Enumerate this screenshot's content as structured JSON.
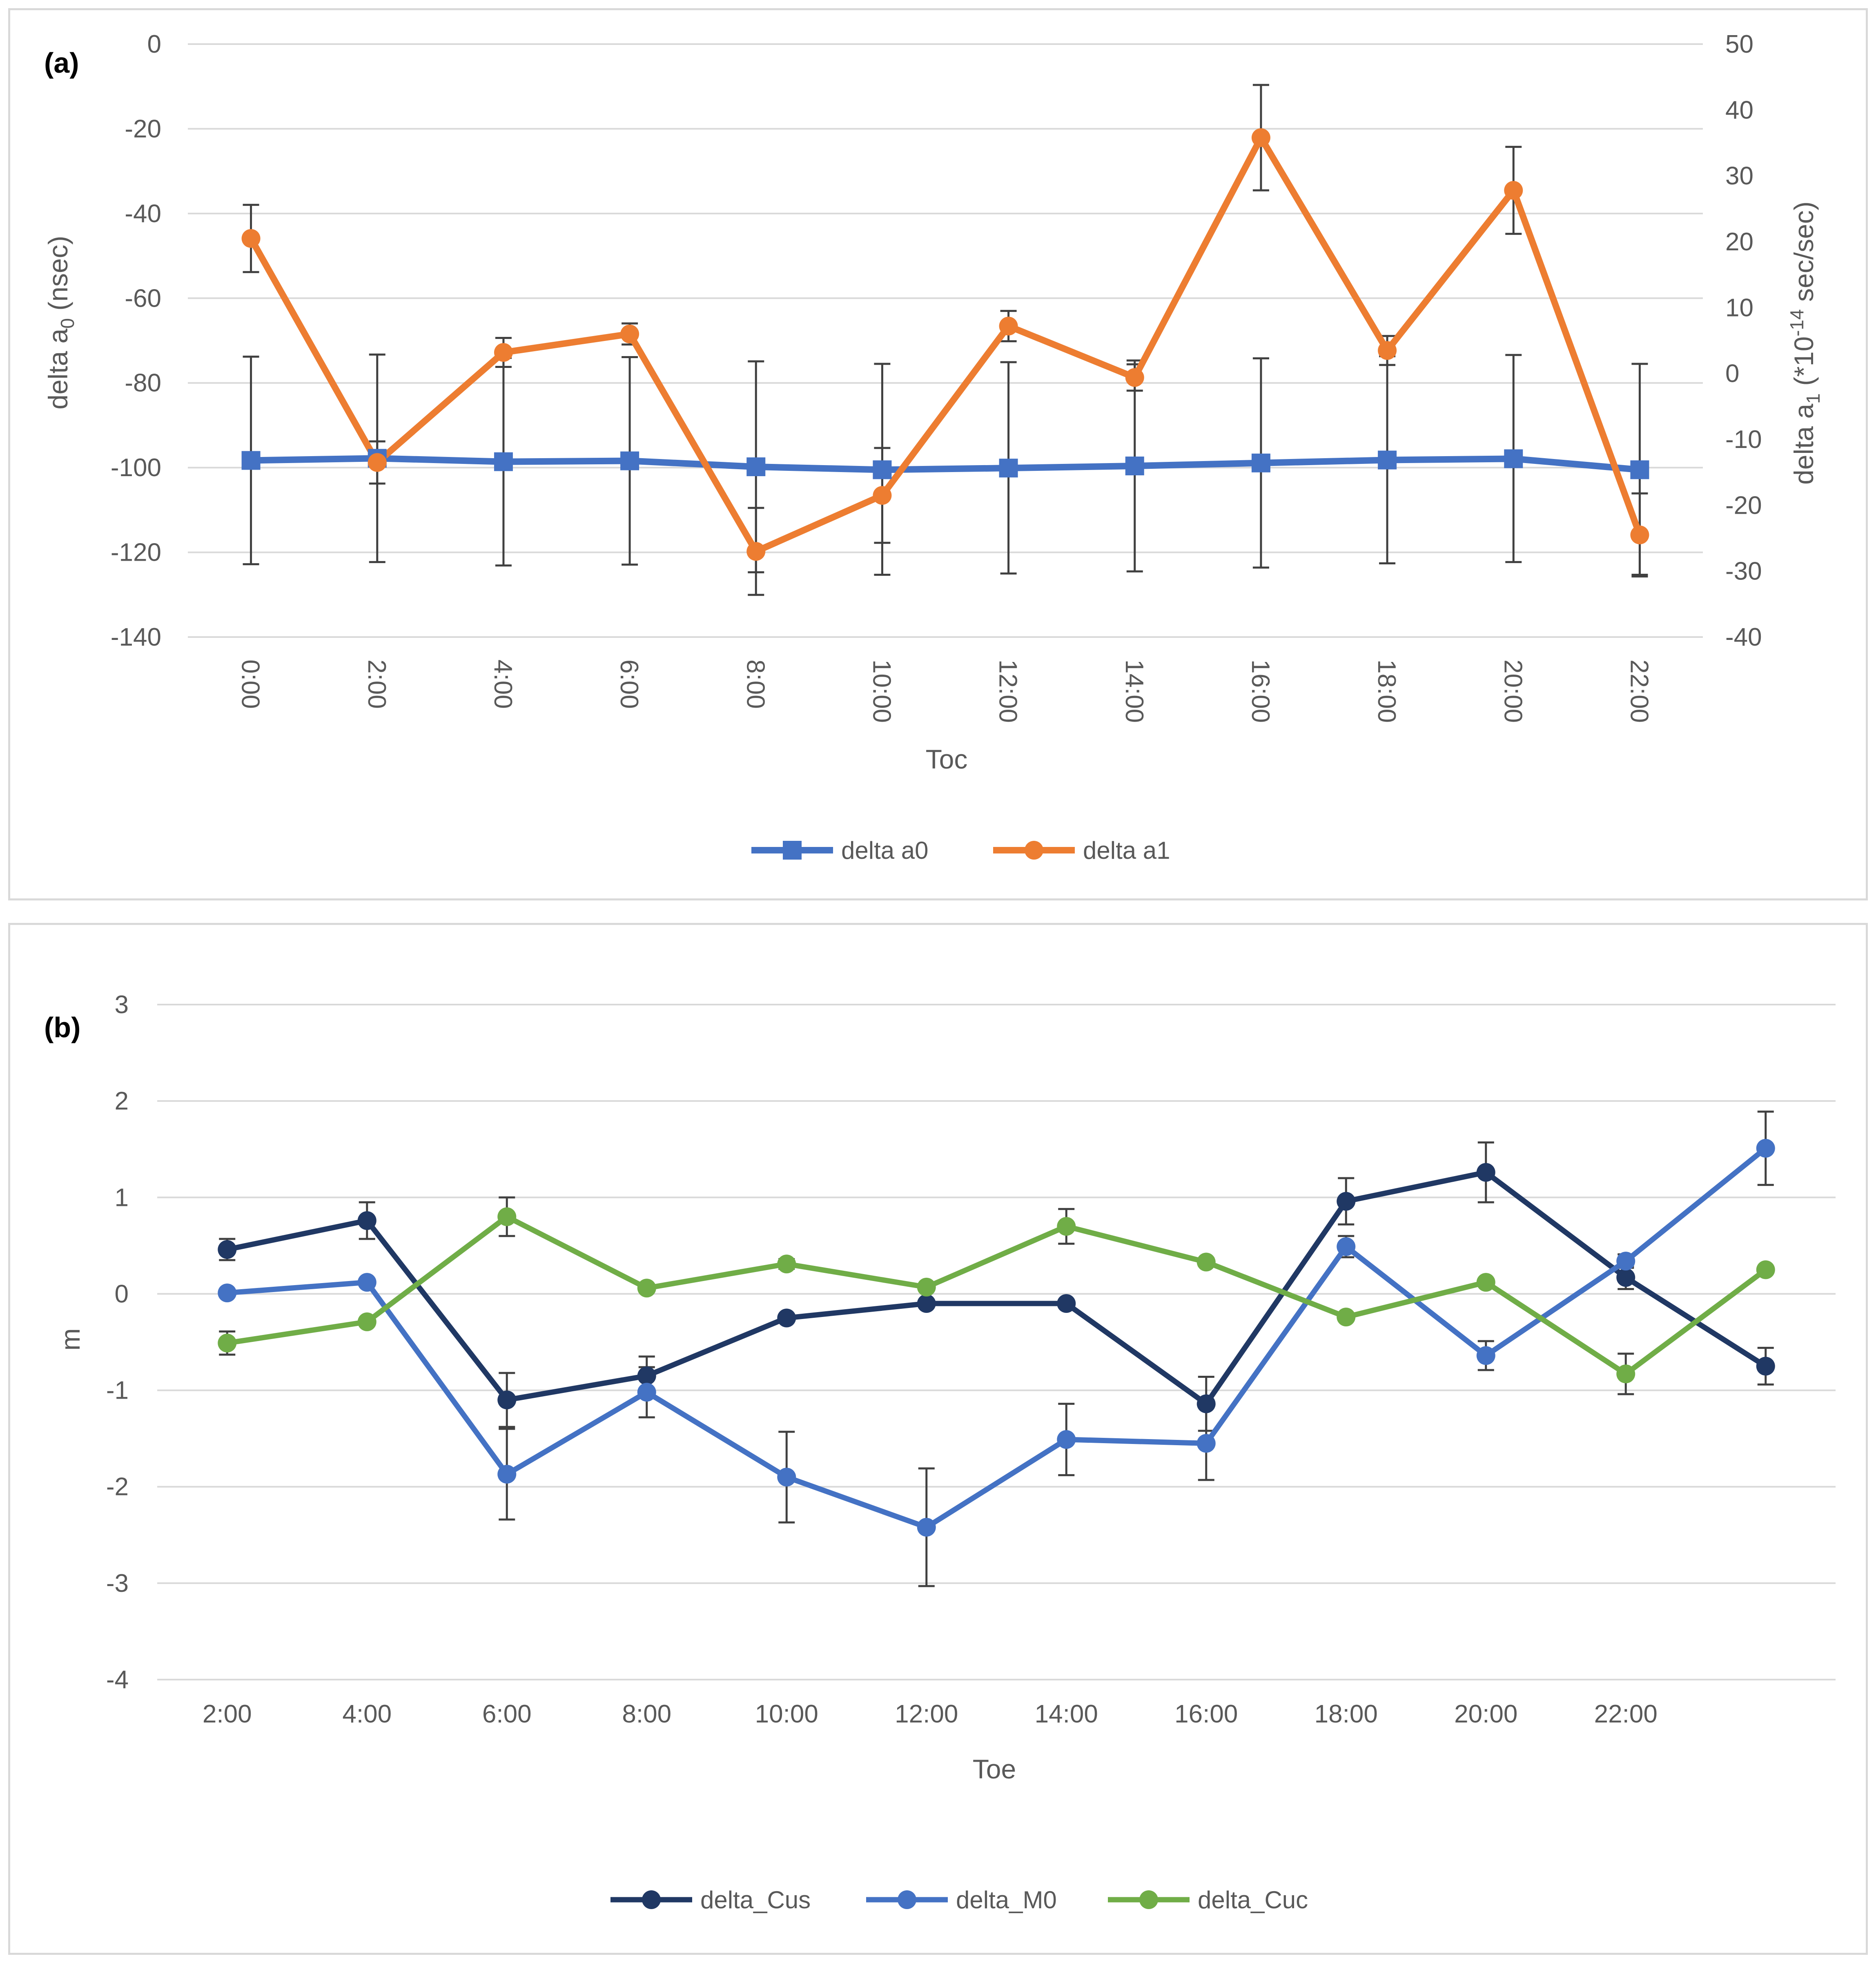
{
  "chart_data": [
    {
      "type": "line",
      "panel_label": "(a)",
      "title": "",
      "categories": [
        "0:00",
        "2:00",
        "4:00",
        "6:00",
        "8:00",
        "10:00",
        "12:00",
        "14:00",
        "16:00",
        "18:00",
        "20:00",
        "22:00"
      ],
      "xlabel": "Toc",
      "ylabel": "delta a0 (nsec)",
      "ylabel_base": "delta a",
      "ylabel_sub": "0",
      "ylabel_tail": " (nsec)",
      "ylim": [
        -140,
        0
      ],
      "yticks": [
        0,
        -20,
        -40,
        -60,
        -80,
        -100,
        -120,
        -140
      ],
      "y2label": "delta a1 (*10-14 sec/sec)",
      "y2label_base": "delta  a",
      "y2label_sub": "1",
      "y2label_mid": " (*10",
      "y2label_sup": "-14",
      "y2label_tail": " sec/sec)",
      "y2lim": [
        -40,
        50
      ],
      "y2ticks": [
        50,
        40,
        30,
        20,
        10,
        0,
        -10,
        -20,
        -30,
        -40
      ],
      "grid": true,
      "legend_position": "bottom",
      "series": [
        {
          "name": "delta a0",
          "axis": "left",
          "marker": "square",
          "color": "#4472c4",
          "values": [
            -98.3,
            -97.8,
            -98.6,
            -98.4,
            -99.8,
            -100.5,
            -100.1,
            -99.6,
            -98.9,
            -98.2,
            -97.9,
            -100.5
          ],
          "err_low": [
            -122.8,
            -122.3,
            -123.1,
            -122.9,
            -124.7,
            -125.3,
            -125.0,
            -124.5,
            -123.6,
            -122.6,
            -122.3,
            -125.3
          ],
          "err_high": [
            -73.8,
            -73.3,
            -74.1,
            -73.9,
            -74.9,
            -75.5,
            -75.1,
            -74.7,
            -74.2,
            -73.7,
            -73.4,
            -75.5
          ]
        },
        {
          "name": "delta a1",
          "axis": "right",
          "marker": "circle",
          "color": "#ed7d31",
          "values": [
            20.5,
            -13.5,
            3.2,
            6.0,
            -27.0,
            -18.5,
            7.2,
            -0.6,
            35.8,
            3.5,
            27.8,
            -24.5
          ],
          "err_low": [
            15.4,
            -16.7,
            1.0,
            4.4,
            -33.6,
            -25.7,
            4.9,
            -2.6,
            27.8,
            1.3,
            21.2,
            -30.8
          ],
          "err_high": [
            25.6,
            -10.3,
            5.4,
            7.6,
            -20.4,
            -11.3,
            9.5,
            1.4,
            43.8,
            5.7,
            34.4,
            -18.2
          ]
        }
      ]
    },
    {
      "type": "line",
      "panel_label": "(b)",
      "title": "",
      "categories": [
        "2:00",
        "4:00",
        "6:00",
        "8:00",
        "10:00",
        "12:00",
        "14:00",
        "16:00",
        "18:00",
        "20:00",
        "22:00",
        ""
      ],
      "xlabel": "Toe",
      "ylabel": "m",
      "ylim": [
        -4,
        3
      ],
      "yticks": [
        3,
        2,
        1,
        0,
        -1,
        -2,
        -3,
        -4
      ],
      "grid": true,
      "legend_position": "bottom",
      "series": [
        {
          "name": "delta_Cus",
          "marker": "circle",
          "color": "#203864",
          "values": [
            0.46,
            0.76,
            -1.1,
            -0.85,
            -0.25,
            -0.1,
            -0.1,
            -1.14,
            0.96,
            1.26,
            0.17,
            -0.75
          ],
          "err_low": [
            0.35,
            0.57,
            -1.38,
            -1.05,
            null,
            null,
            null,
            -1.42,
            0.72,
            0.95,
            0.05,
            -0.94
          ],
          "err_high": [
            0.57,
            0.95,
            -0.82,
            -0.65,
            null,
            null,
            null,
            -0.86,
            1.2,
            1.57,
            0.29,
            -0.56
          ]
        },
        {
          "name": "delta_M0",
          "marker": "circle",
          "color": "#4472c4",
          "values": [
            0.01,
            0.12,
            -1.87,
            -1.02,
            -1.9,
            -2.42,
            -1.51,
            -1.55,
            0.49,
            -0.64,
            0.34,
            1.51
          ],
          "err_low": [
            null,
            null,
            -2.34,
            -1.28,
            -2.37,
            -3.03,
            -1.88,
            -1.93,
            0.38,
            -0.79,
            0.27,
            1.13
          ],
          "err_high": [
            null,
            null,
            -1.4,
            -0.76,
            -1.43,
            -1.81,
            -1.14,
            -1.17,
            0.6,
            -0.49,
            0.41,
            1.89
          ]
        },
        {
          "name": "delta_Cuc",
          "marker": "circle",
          "color": "#70ad47",
          "values": [
            -0.51,
            -0.29,
            0.8,
            0.06,
            0.31,
            0.07,
            0.7,
            0.33,
            -0.24,
            0.12,
            -0.83,
            0.25
          ],
          "err_low": [
            -0.63,
            null,
            0.6,
            null,
            0.26,
            null,
            0.52,
            0.29,
            null,
            null,
            -1.04,
            null
          ],
          "err_high": [
            -0.39,
            null,
            1.0,
            null,
            0.36,
            null,
            0.88,
            0.37,
            null,
            null,
            -0.62,
            null
          ]
        }
      ]
    }
  ]
}
